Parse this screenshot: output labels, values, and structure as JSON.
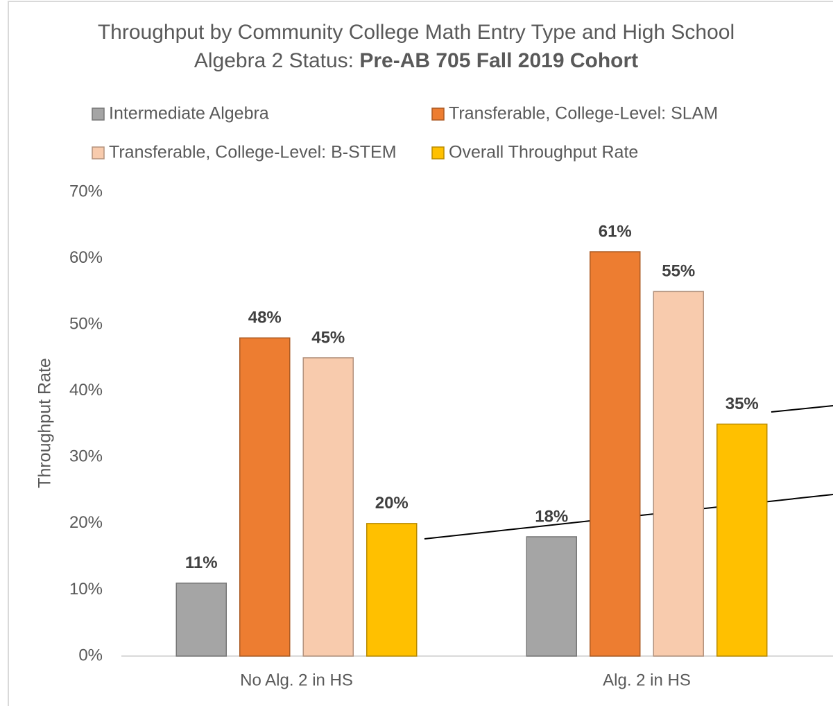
{
  "chart_data": {
    "type": "bar",
    "title": "Throughput by Community College Math Entry Type and High School Algebra 2 Status:",
    "title_emphasis": "Pre-AB 705 Fall 2019 Cohort",
    "ylabel": "Throughput Rate",
    "categories": [
      "No Alg. 2 in HS",
      "Alg. 2 in HS"
    ],
    "series": [
      {
        "name": "Intermediate Algebra",
        "color": "#a5a5a5",
        "values": [
          11,
          18
        ],
        "value_labels": [
          "11%",
          "18%"
        ]
      },
      {
        "name": "Transferable, College-Level: SLAM",
        "color": "#ed7d31",
        "values": [
          48,
          61
        ],
        "value_labels": [
          "48%",
          "61%"
        ]
      },
      {
        "name": "Transferable, College-Level: B-STEM",
        "color": "#f8cbad",
        "values": [
          45,
          55
        ],
        "value_labels": [
          "45%",
          "55%"
        ]
      },
      {
        "name": "Overall Throughput Rate",
        "color": "#ffc000",
        "values": [
          20,
          35
        ],
        "value_labels": [
          "20%",
          "35%"
        ]
      }
    ],
    "ylim": [
      0,
      70
    ],
    "yticks": [
      {
        "value": 0,
        "label": "0%"
      },
      {
        "value": 10,
        "label": "10%"
      },
      {
        "value": 20,
        "label": "20%"
      },
      {
        "value": 30,
        "label": "30%"
      },
      {
        "value": 40,
        "label": "40%"
      },
      {
        "value": 50,
        "label": "50%"
      },
      {
        "value": 60,
        "label": "60%"
      },
      {
        "value": 70,
        "label": "70%"
      }
    ],
    "grid": false,
    "legend": "top"
  }
}
